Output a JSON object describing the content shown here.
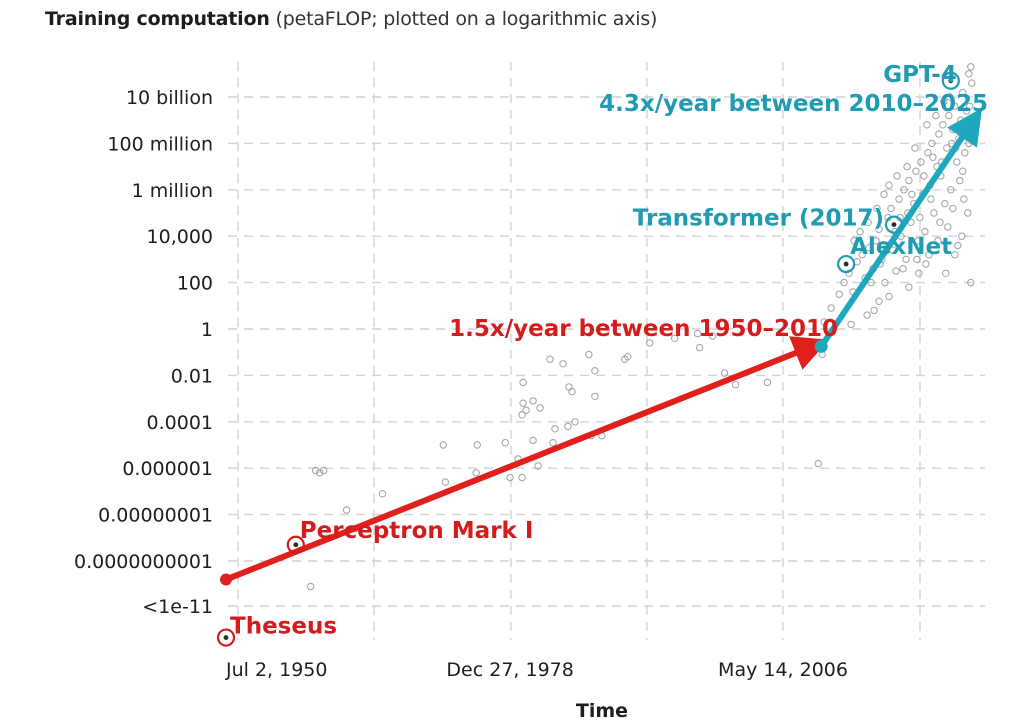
{
  "title": {
    "bold": "Training computation",
    "rest": " (petaFLOP; plotted on a logarithmic axis)"
  },
  "colors": {
    "trend_pre2010": "#e0201c",
    "trend_post2010": "#1fa8bd",
    "label_red": "#d41c1c",
    "label_teal": "#1f9cb3",
    "points": "#9aa4a8",
    "grid": "#cfd4d6"
  },
  "chart_data": {
    "type": "scatter",
    "title": "Training computation (petaFLOP; plotted on a logarithmic axis)",
    "xlabel": "Time",
    "ylabel": "Training computation (petaFLOP)",
    "yscale": "log",
    "grid": true,
    "legend": "none",
    "xlim": [
      1950.5,
      2025.5
    ],
    "ylim_log10": [
      -12.5,
      11.5
    ],
    "x_ticks": [
      {
        "label": "Jul 2, 1950",
        "year": 1950.5
      },
      {
        "label": "Dec 27, 1978",
        "year": 1979.0
      },
      {
        "label": "May 14, 2006",
        "year": 2006.37
      }
    ],
    "y_ticks": [
      {
        "label": "10 billion",
        "log10": 10
      },
      {
        "label": "100 million",
        "log10": 8
      },
      {
        "label": "1 million",
        "log10": 6
      },
      {
        "label": "10,000",
        "log10": 4
      },
      {
        "label": "100",
        "log10": 2
      },
      {
        "label": "1",
        "log10": 0
      },
      {
        "label": "0.01",
        "log10": -2
      },
      {
        "label": "0.0001",
        "log10": -4
      },
      {
        "label": "0.000001",
        "log10": -6
      },
      {
        "label": "0.00000001",
        "log10": -8
      },
      {
        "label": "0.0000000001",
        "log10": -10
      },
      {
        "label": "<1e-11",
        "log10": -12
      }
    ],
    "trends": [
      {
        "name": "1.5x/year between 1950–2010",
        "color": "#e0201c",
        "start": {
          "year": 1950.5,
          "log10": -10.8
        },
        "end": {
          "year": 2009.6,
          "log10": -0.7
        }
      },
      {
        "name": "4.3x/year between 2010–2025",
        "color": "#1fa8bd",
        "start": {
          "year": 2010.2,
          "log10": -0.75
        },
        "end": {
          "year": 2025.5,
          "log10": 9.0
        }
      }
    ],
    "highlighted": [
      {
        "name": "Theseus",
        "year": 1950.5,
        "log10": -13.3,
        "color": "#d41c1c"
      },
      {
        "name": "Perceptron Mark I",
        "year": 1957.5,
        "log10": -9.3,
        "color": "#d41c1c"
      },
      {
        "name": "AlexNet",
        "year": 2012.7,
        "log10": 2.8,
        "color": "#1f9cb3"
      },
      {
        "name": "Transformer (2017)",
        "year": 2017.5,
        "log10": 4.5,
        "color": "#1f9cb3"
      },
      {
        "name": "GPT-4",
        "year": 2023.2,
        "log10": 10.7,
        "color": "#1f9cb3"
      }
    ],
    "points": [
      [
        1959.5,
        -6.1
      ],
      [
        1959.9,
        -6.2
      ],
      [
        1960.3,
        -6.1
      ],
      [
        1962.6,
        -7.8
      ],
      [
        1966.2,
        -7.1
      ],
      [
        1959.0,
        -11.1
      ],
      [
        1963.5,
        -8.6
      ],
      [
        1972.5,
        -6.6
      ],
      [
        1975.6,
        -6.2
      ],
      [
        1979.0,
        -6.4
      ],
      [
        1980.2,
        -6.4
      ],
      [
        1981.8,
        -5.9
      ],
      [
        1972.3,
        -5.0
      ],
      [
        1975.7,
        -5.0
      ],
      [
        1978.5,
        -4.9
      ],
      [
        1981.3,
        -4.8
      ],
      [
        1979.8,
        -5.6
      ],
      [
        1983.3,
        -4.9
      ],
      [
        1985.5,
        -4.0
      ],
      [
        1987.1,
        -4.6
      ],
      [
        1988.2,
        -4.6
      ],
      [
        1983.5,
        -4.3
      ],
      [
        1984.8,
        -4.2
      ],
      [
        1980.2,
        -3.7
      ],
      [
        1980.3,
        -3.2
      ],
      [
        1980.6,
        -3.5
      ],
      [
        1981.3,
        -3.1
      ],
      [
        1982.0,
        -3.4
      ],
      [
        1987.5,
        -2.9
      ],
      [
        1985.2,
        -2.7
      ],
      [
        1984.9,
        -2.5
      ],
      [
        1980.3,
        -2.3
      ],
      [
        1987.5,
        -1.8
      ],
      [
        1983.0,
        -1.3
      ],
      [
        1984.3,
        -1.5
      ],
      [
        1986.9,
        -1.1
      ],
      [
        1993.0,
        -0.6
      ],
      [
        1995.5,
        -0.4
      ],
      [
        1997.8,
        -0.2
      ],
      [
        1999.3,
        -0.3
      ],
      [
        1990.5,
        -1.3
      ],
      [
        1990.8,
        -1.2
      ],
      [
        1998.0,
        -0.8
      ],
      [
        2000.5,
        -1.9
      ],
      [
        2001.6,
        -2.4
      ],
      [
        2010.3,
        -1.1
      ],
      [
        2009.9,
        -5.8
      ],
      [
        2004.8,
        -2.3
      ],
      [
        2010.5,
        0.3
      ],
      [
        2011.2,
        0.9
      ],
      [
        2012.0,
        1.5
      ],
      [
        2012.5,
        2.0
      ],
      [
        2013.0,
        2.4
      ],
      [
        2013.4,
        1.6
      ],
      [
        2013.8,
        2.9
      ],
      [
        2014.3,
        3.2
      ],
      [
        2014.6,
        2.2
      ],
      [
        2015.0,
        3.5
      ],
      [
        2015.4,
        2.6
      ],
      [
        2015.7,
        3.8
      ],
      [
        2016.0,
        4.3
      ],
      [
        2016.3,
        3.0
      ],
      [
        2016.6,
        2.0
      ],
      [
        2016.9,
        4.8
      ],
      [
        2017.2,
        5.2
      ],
      [
        2017.4,
        3.4
      ],
      [
        2017.7,
        2.5
      ],
      [
        2018.0,
        5.6
      ],
      [
        2018.2,
        4.0
      ],
      [
        2018.5,
        6.0
      ],
      [
        2018.7,
        3.0
      ],
      [
        2019.0,
        6.4
      ],
      [
        2019.2,
        4.6
      ],
      [
        2019.5,
        5.4
      ],
      [
        2019.7,
        6.8
      ],
      [
        2019.9,
        3.8
      ],
      [
        2020.2,
        7.2
      ],
      [
        2020.4,
        5.8
      ],
      [
        2020.6,
        4.2
      ],
      [
        2020.9,
        7.6
      ],
      [
        2021.1,
        6.2
      ],
      [
        2021.3,
        8.0
      ],
      [
        2021.5,
        5.0
      ],
      [
        2021.8,
        7.0
      ],
      [
        2022.0,
        8.4
      ],
      [
        2022.2,
        6.6
      ],
      [
        2022.4,
        8.8
      ],
      [
        2022.6,
        5.4
      ],
      [
        2022.8,
        7.8
      ],
      [
        2023.0,
        9.2
      ],
      [
        2023.2,
        6.0
      ],
      [
        2023.4,
        8.6
      ],
      [
        2023.6,
        9.6
      ],
      [
        2023.8,
        7.2
      ],
      [
        2024.0,
        8.2
      ],
      [
        2024.2,
        9.0
      ],
      [
        2024.4,
        6.8
      ],
      [
        2024.6,
        7.6
      ],
      [
        2024.8,
        9.4
      ],
      [
        2025.0,
        8.0
      ],
      [
        2025.3,
        10.6
      ],
      [
        2025.0,
        11.0
      ],
      [
        2025.2,
        11.3
      ],
      [
        2024.5,
        5.6
      ],
      [
        2025.2,
        2.0
      ],
      [
        2023.6,
        3.2
      ],
      [
        2023.9,
        3.6
      ],
      [
        2021.0,
        3.2
      ],
      [
        2020.0,
        2.4
      ],
      [
        2019.0,
        1.8
      ],
      [
        2018.4,
        2.6
      ],
      [
        2017.0,
        1.4
      ],
      [
        2016.0,
        1.2
      ],
      [
        2014.8,
        0.6
      ],
      [
        2013.2,
        0.2
      ],
      [
        2015.5,
        0.8
      ],
      [
        2021.7,
        9.2
      ],
      [
        2022.5,
        9.8
      ],
      [
        2023.1,
        10.0
      ],
      [
        2024.4,
        10.2
      ],
      [
        2020.8,
        8.8
      ],
      [
        2019.6,
        7.8
      ],
      [
        2018.8,
        7.0
      ],
      [
        2017.8,
        6.6
      ],
      [
        2017.0,
        6.2
      ],
      [
        2016.5,
        5.8
      ],
      [
        2015.8,
        5.2
      ],
      [
        2014.9,
        4.6
      ],
      [
        2014.1,
        4.2
      ],
      [
        2013.5,
        3.8
      ],
      [
        2022.9,
        4.4
      ],
      [
        2022.1,
        4.6
      ],
      [
        2021.9,
        3.8
      ],
      [
        2024.9,
        5.0
      ],
      [
        2023.4,
        5.2
      ],
      [
        2020.5,
        6.6
      ],
      [
        2021.4,
        7.4
      ],
      [
        2022.3,
        7.2
      ],
      [
        2023.7,
        7.8
      ],
      [
        2024.1,
        6.4
      ],
      [
        2019.3,
        5.8
      ],
      [
        2018.1,
        4.8
      ],
      [
        2016.8,
        3.6
      ],
      [
        2015.2,
        2.0
      ],
      [
        2019.8,
        3.0
      ],
      [
        2020.7,
        2.8
      ],
      [
        2022.7,
        2.4
      ],
      [
        2024.3,
        4.0
      ],
      [
        2025.1,
        9.6
      ],
      [
        2024.7,
        8.6
      ],
      [
        2023.3,
        8.0
      ],
      [
        2021.2,
        5.6
      ],
      [
        2020.1,
        4.8
      ],
      [
        2018.9,
        5.0
      ],
      [
        2017.6,
        4.2
      ],
      [
        2016.1,
        2.8
      ]
    ]
  }
}
